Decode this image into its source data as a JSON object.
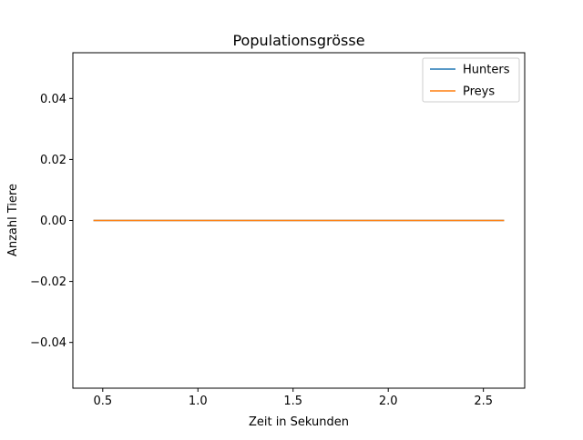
{
  "chart_data": {
    "type": "line",
    "title": "Populationsgrösse",
    "xlabel": "Zeit in Sekunden",
    "ylabel": "Anzahl Tiere",
    "xlim": [
      0.343,
      2.717
    ],
    "ylim": [
      -0.055,
      0.055
    ],
    "xticks": [
      0.5,
      1.0,
      1.5,
      2.0,
      2.5
    ],
    "xtick_labels": [
      "0.5",
      "1.0",
      "1.5",
      "2.0",
      "2.5"
    ],
    "yticks": [
      -0.04,
      -0.02,
      0.0,
      0.02,
      0.04
    ],
    "ytick_labels": [
      "−0.04",
      "−0.02",
      "0.00",
      "0.02",
      "0.04"
    ],
    "grid": false,
    "legend": "top-right",
    "series": [
      {
        "name": "Hunters",
        "color": "#1f77b4",
        "x": [
          0.451,
          2.609
        ],
        "y": [
          0,
          0
        ]
      },
      {
        "name": "Preys",
        "color": "#ff7f0e",
        "x": [
          0.451,
          2.609
        ],
        "y": [
          0,
          0
        ]
      }
    ]
  }
}
